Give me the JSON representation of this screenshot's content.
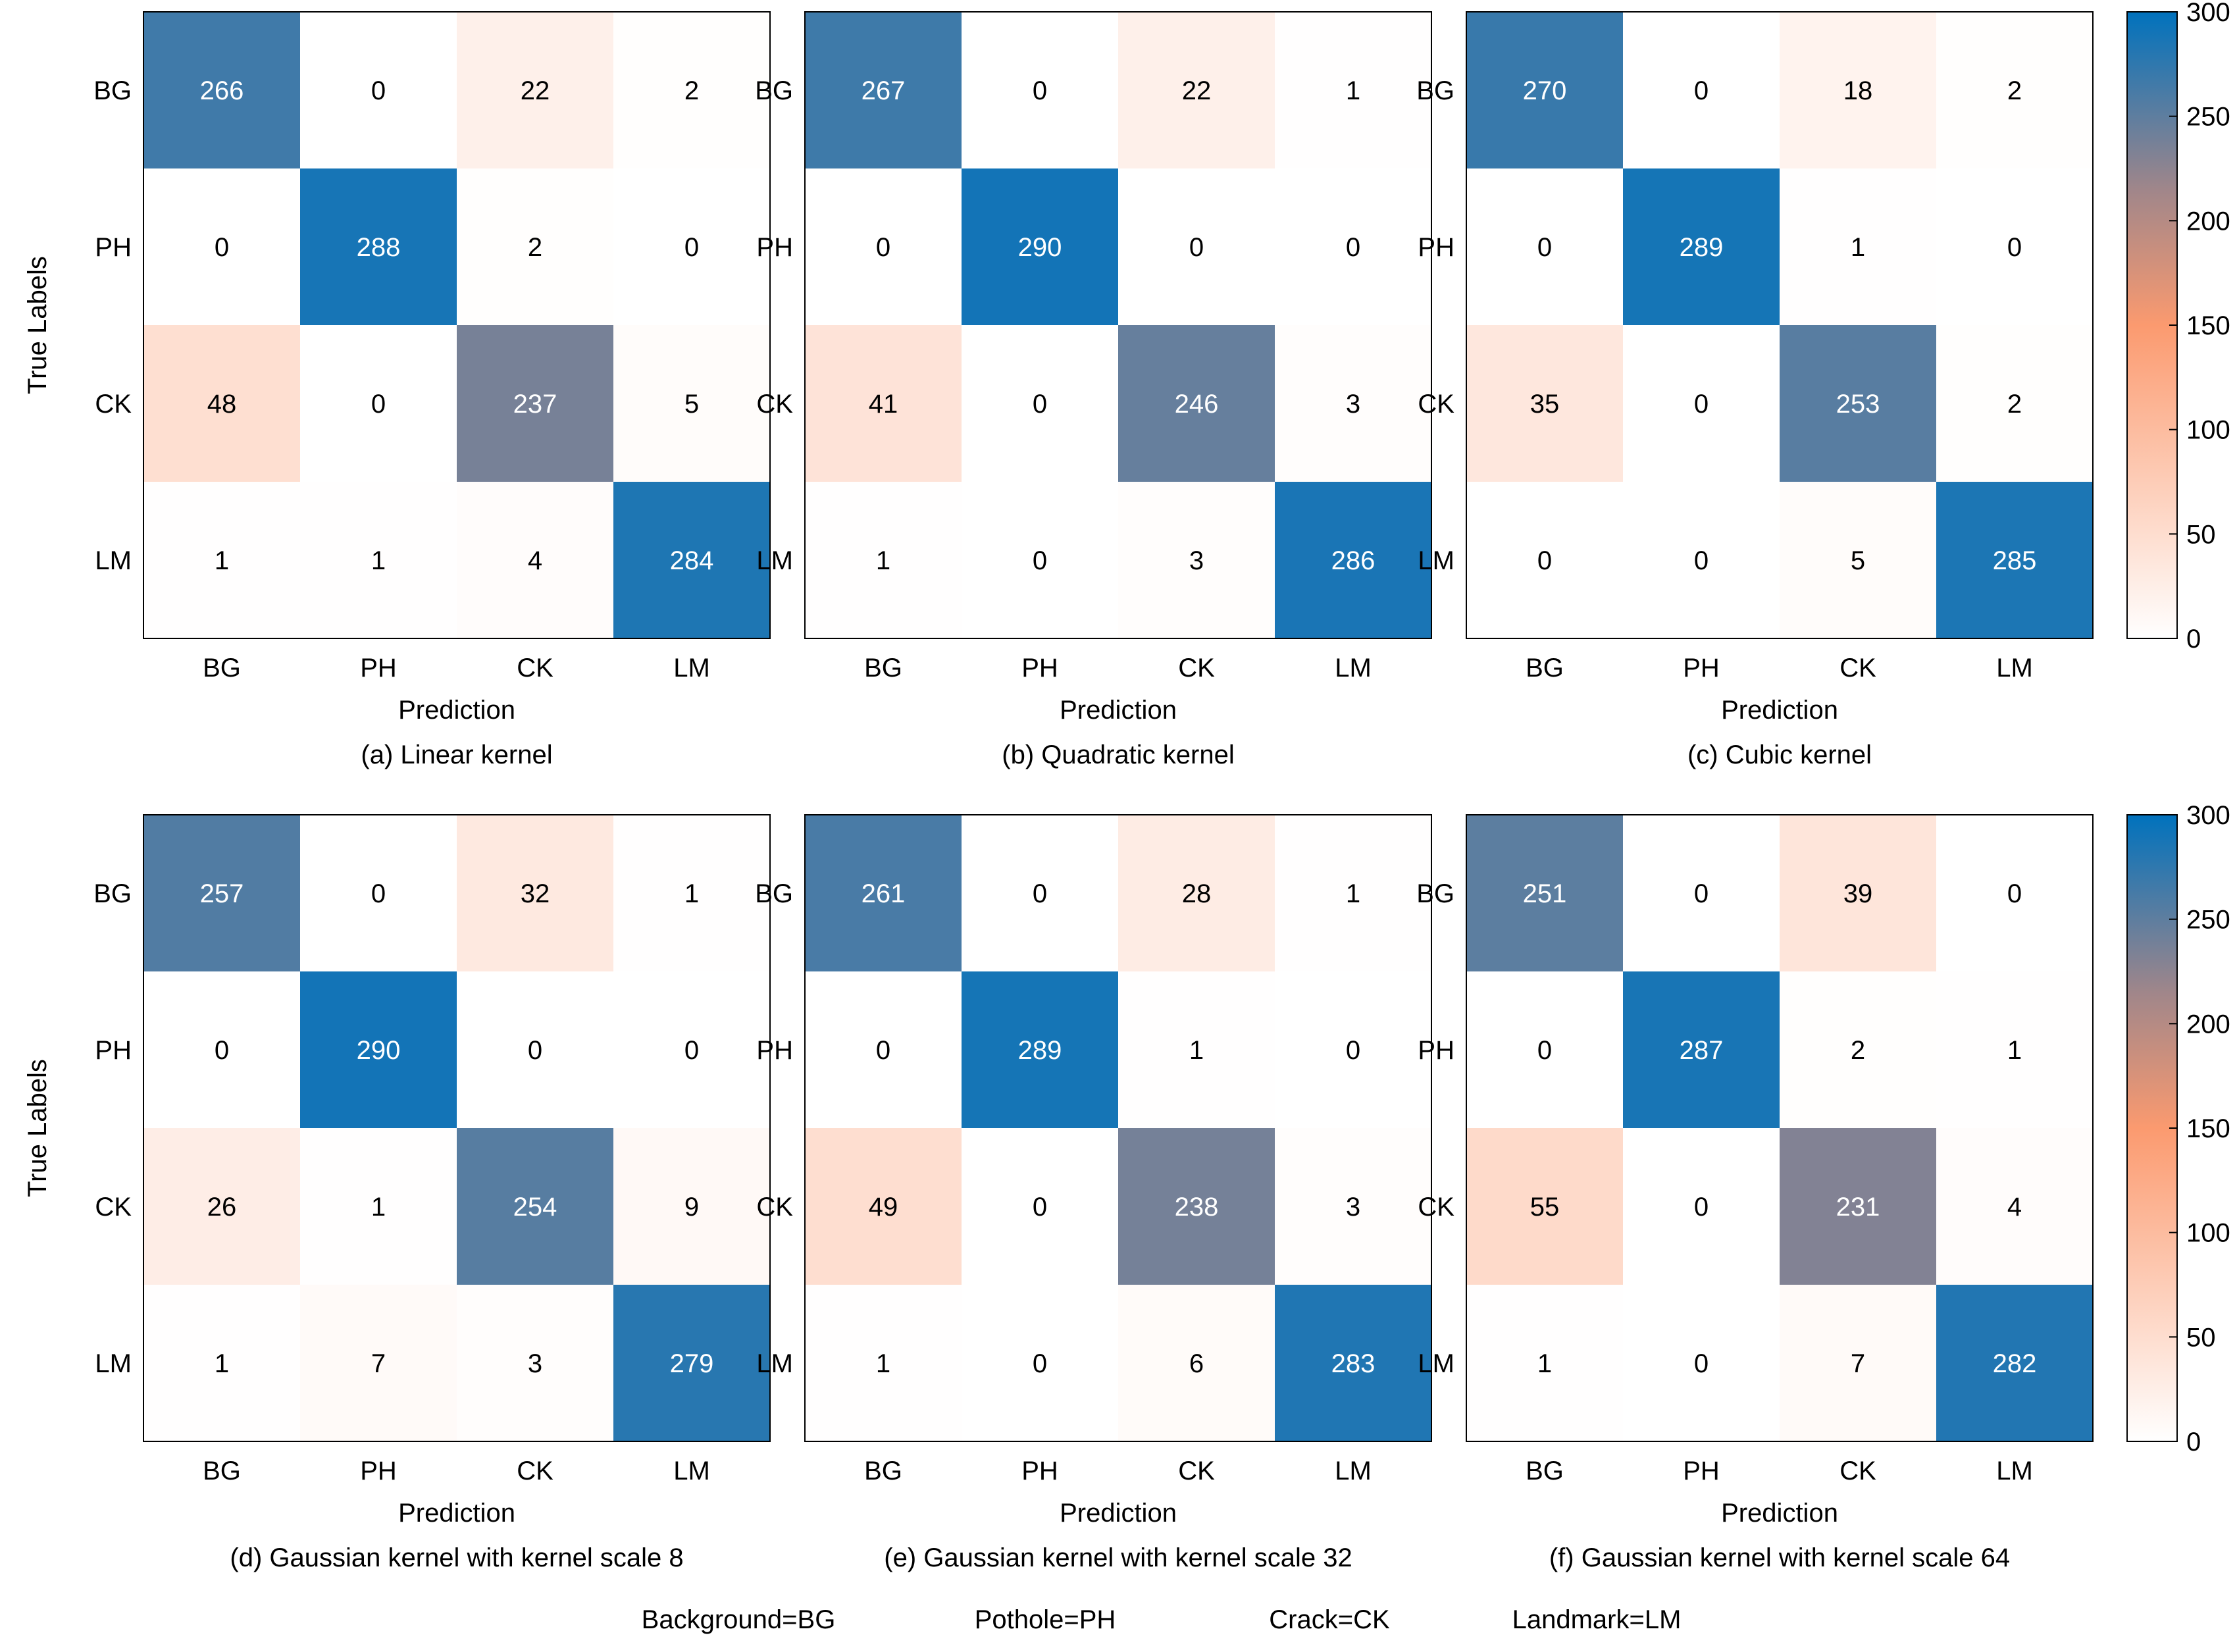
{
  "chart_data": [
    {
      "type": "heatmap",
      "caption": "(a) Linear kernel",
      "xlabel": "Prediction",
      "ylabel": "True Labels",
      "classes": [
        "BG",
        "PH",
        "CK",
        "LM"
      ],
      "matrix": [
        [
          266,
          0,
          22,
          2
        ],
        [
          0,
          288,
          2,
          0
        ],
        [
          48,
          0,
          237,
          5
        ],
        [
          1,
          1,
          4,
          284
        ]
      ]
    },
    {
      "type": "heatmap",
      "caption": "(b) Quadratic kernel",
      "xlabel": "Prediction",
      "ylabel": "",
      "classes": [
        "BG",
        "PH",
        "CK",
        "LM"
      ],
      "matrix": [
        [
          267,
          0,
          22,
          1
        ],
        [
          0,
          290,
          0,
          0
        ],
        [
          41,
          0,
          246,
          3
        ],
        [
          1,
          0,
          3,
          286
        ]
      ]
    },
    {
      "type": "heatmap",
      "caption": "(c) Cubic kernel",
      "xlabel": "Prediction",
      "ylabel": "",
      "classes": [
        "BG",
        "PH",
        "CK",
        "LM"
      ],
      "matrix": [
        [
          270,
          0,
          18,
          2
        ],
        [
          0,
          289,
          1,
          0
        ],
        [
          35,
          0,
          253,
          2
        ],
        [
          0,
          0,
          5,
          285
        ]
      ]
    },
    {
      "type": "heatmap",
      "caption": "(d) Gaussian kernel with kernel scale 8",
      "xlabel": "Prediction",
      "ylabel": "True Labels",
      "classes": [
        "BG",
        "PH",
        "CK",
        "LM"
      ],
      "matrix": [
        [
          257,
          0,
          32,
          1
        ],
        [
          0,
          290,
          0,
          0
        ],
        [
          26,
          1,
          254,
          9
        ],
        [
          1,
          7,
          3,
          279
        ]
      ]
    },
    {
      "type": "heatmap",
      "caption": "(e) Gaussian kernel with kernel scale 32",
      "xlabel": "Prediction",
      "ylabel": "",
      "classes": [
        "BG",
        "PH",
        "CK",
        "LM"
      ],
      "matrix": [
        [
          261,
          0,
          28,
          1
        ],
        [
          0,
          289,
          1,
          0
        ],
        [
          49,
          0,
          238,
          3
        ],
        [
          1,
          0,
          6,
          283
        ]
      ]
    },
    {
      "type": "heatmap",
      "caption": "(f) Gaussian kernel with kernel scale 64",
      "xlabel": "Prediction",
      "ylabel": "",
      "classes": [
        "BG",
        "PH",
        "CK",
        "LM"
      ],
      "matrix": [
        [
          251,
          0,
          39,
          0
        ],
        [
          0,
          287,
          2,
          1
        ],
        [
          55,
          0,
          231,
          4
        ],
        [
          1,
          0,
          7,
          282
        ]
      ]
    }
  ],
  "colorbar": {
    "range": [
      0,
      300
    ],
    "ticks": [
      0,
      50,
      100,
      150,
      200,
      250,
      300
    ],
    "stops": [
      {
        "value": 0,
        "color": "#ffffff"
      },
      {
        "value": 150,
        "color": "#fb9a6f"
      },
      {
        "value": 215,
        "color": "#a0868a"
      },
      {
        "value": 300,
        "color": "#0072bd"
      }
    ]
  },
  "legend": [
    "Background=BG",
    "Pothole=PH",
    "Crack=CK",
    "Landmark=LM"
  ]
}
